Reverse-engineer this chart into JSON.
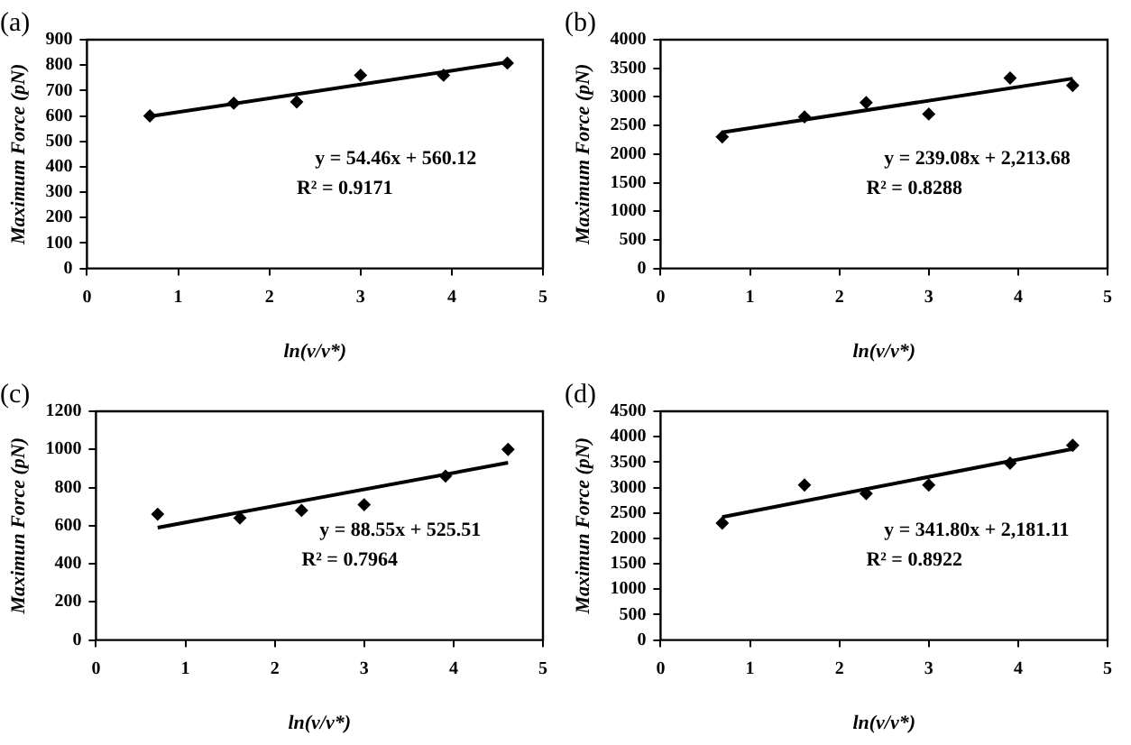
{
  "chart_data": [
    {
      "type": "scatter",
      "title": "(a)",
      "xlabel": "ln(v/v*)",
      "ylabel": "Maximum Force (pN)",
      "marker": "diamond",
      "grid": false,
      "legend": false,
      "xlim": [
        0,
        5
      ],
      "xticks": [
        0,
        1,
        2,
        3,
        4,
        5
      ],
      "ylim": [
        0,
        900
      ],
      "yticks": [
        0,
        100,
        200,
        300,
        400,
        500,
        600,
        700,
        800,
        900
      ],
      "annotations": [
        "y = 54.46x + 560.12",
        "R² = 0.9171"
      ],
      "series": [
        {
          "color": "#000000",
          "x": [
            0.69,
            1.61,
            2.3,
            3.0,
            3.91,
            4.61
          ],
          "values": [
            600,
            650,
            655,
            760,
            760,
            808
          ]
        },
        {
          "type": "line",
          "color": "#000000",
          "marker": "none",
          "x": [
            0.69,
            4.61
          ],
          "values": [
            598,
            811
          ]
        }
      ]
    },
    {
      "type": "scatter",
      "title": "(b)",
      "xlabel": "ln(v/v*)",
      "ylabel": "Maximum Force (pN)",
      "marker": "diamond",
      "grid": false,
      "legend": false,
      "xlim": [
        0,
        5
      ],
      "xticks": [
        0,
        1,
        2,
        3,
        4,
        5
      ],
      "ylim": [
        0,
        4000
      ],
      "yticks": [
        0,
        500,
        1000,
        1500,
        2000,
        2500,
        3000,
        3500,
        4000
      ],
      "annotations": [
        "y = 239.08x + 2,213.68",
        "R² = 0.8288"
      ],
      "series": [
        {
          "color": "#000000",
          "x": [
            0.69,
            1.61,
            2.3,
            3.0,
            3.91,
            4.61
          ],
          "values": [
            2300,
            2650,
            2900,
            2700,
            3330,
            3200
          ]
        },
        {
          "type": "line",
          "color": "#000000",
          "marker": "none",
          "x": [
            0.69,
            4.61
          ],
          "values": [
            2380,
            3320
          ]
        }
      ]
    },
    {
      "type": "scatter",
      "title": "(c)",
      "xlabel": "ln(v/v*)",
      "ylabel": "Maximun Force (pN)",
      "marker": "diamond",
      "grid": false,
      "legend": false,
      "xlim": [
        0,
        5
      ],
      "xticks": [
        0,
        1,
        2,
        3,
        4,
        5
      ],
      "ylim": [
        0,
        1200
      ],
      "yticks": [
        0,
        200,
        400,
        600,
        800,
        1000,
        1200
      ],
      "annotations": [
        "y = 88.55x + 525.51",
        "R² = 0.7964"
      ],
      "series": [
        {
          "color": "#000000",
          "x": [
            0.69,
            1.61,
            2.3,
            3.0,
            3.91,
            4.61
          ],
          "values": [
            660,
            640,
            680,
            710,
            860,
            1000
          ]
        },
        {
          "type": "line",
          "color": "#000000",
          "marker": "none",
          "x": [
            0.69,
            4.61
          ],
          "values": [
            590,
            930
          ]
        }
      ]
    },
    {
      "type": "scatter",
      "title": "(d)",
      "xlabel": "ln(v/v*)",
      "ylabel": "Maximun Force (pN)",
      "marker": "diamond",
      "grid": false,
      "legend": false,
      "xlim": [
        0,
        5
      ],
      "xticks": [
        0,
        1,
        2,
        3,
        4,
        5
      ],
      "ylim": [
        0,
        4500
      ],
      "yticks": [
        0,
        500,
        1000,
        1500,
        2000,
        2500,
        3000,
        3500,
        4000,
        4500
      ],
      "annotations": [
        "y = 341.80x + 2,181.11",
        "R² = 0.8922"
      ],
      "series": [
        {
          "color": "#000000",
          "x": [
            0.69,
            1.61,
            2.3,
            3.0,
            3.91,
            4.61
          ],
          "values": [
            2300,
            3050,
            2880,
            3050,
            3480,
            3830
          ]
        },
        {
          "type": "line",
          "color": "#000000",
          "marker": "none",
          "x": [
            0.69,
            4.61
          ],
          "values": [
            2420,
            3760
          ]
        }
      ]
    }
  ]
}
